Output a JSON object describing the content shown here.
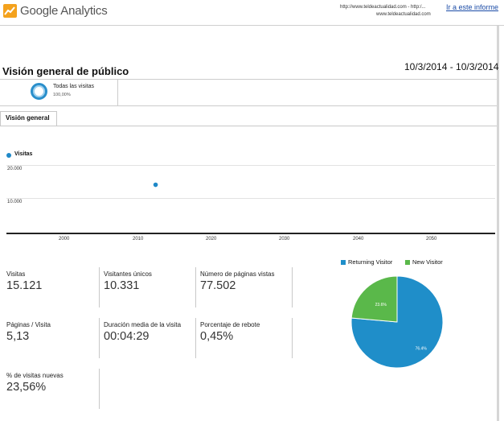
{
  "header": {
    "brand": "Google Analytics",
    "url_line1": "http://www.teldeactualidad.com - http:/...",
    "url_line2": "www.teldeactualidad.com",
    "go_to_report": "Ir a este informe"
  },
  "page": {
    "title": "Visión general de público",
    "date_range": "10/3/2014 - 10/3/2014"
  },
  "segment": {
    "name": "Todas las visitas",
    "percent": "100,00%"
  },
  "tabs": [
    {
      "label": "Visión general"
    }
  ],
  "chart": {
    "legend": "Visitas",
    "y_ticks": [
      "20.000",
      "10.000"
    ],
    "x_ticks": [
      "2000",
      "2010",
      "2020",
      "2030",
      "2040",
      "2050"
    ],
    "colors": {
      "series": "#1f89c8"
    }
  },
  "chart_data": [
    {
      "type": "scatter",
      "series": [
        {
          "name": "Visitas",
          "x": [
            2014.3
          ],
          "y": [
            15121
          ]
        }
      ],
      "x_ticks": [
        "2000",
        "2010",
        "2020",
        "2030",
        "2040",
        "2050"
      ],
      "y_ticks": [
        "20.000",
        "10.000"
      ],
      "xlim": [
        1994.4,
        2059.6
      ],
      "ylim": [
        1000,
        21800
      ],
      "grid": true
    },
    {
      "type": "pie",
      "categories": [
        "Returning Visitor",
        "New Visitor"
      ],
      "values": [
        76.4,
        23.6
      ],
      "labels": [
        "76.4%",
        "23.6%"
      ],
      "colors": [
        "#1f8ec9",
        "#5ab84a"
      ],
      "legend": "top"
    }
  ],
  "metrics": [
    {
      "label": "Visitas",
      "value": "15.121"
    },
    {
      "label": "Visitantes únicos",
      "value": "10.331"
    },
    {
      "label": "Número de páginas vistas",
      "value": "77.502"
    },
    {
      "label": "Páginas / Visita",
      "value": "5,13"
    },
    {
      "label": "Duración media de la visita",
      "value": "00:04:29"
    },
    {
      "label": "Porcentaje de rebote",
      "value": "0,45%"
    },
    {
      "label": "% de visitas nuevas",
      "value": "23,56%"
    }
  ],
  "pie": {
    "legend": [
      "Returning Visitor",
      "New Visitor"
    ],
    "slice_labels": [
      "76.4%",
      "23.6%"
    ],
    "colors": [
      "#1f8ec9",
      "#5ab84a"
    ]
  }
}
